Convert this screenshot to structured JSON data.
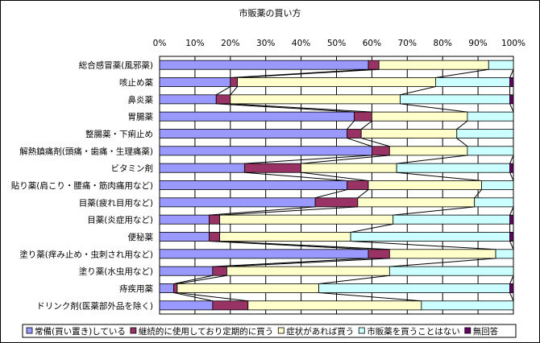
{
  "chart_data": {
    "type": "bar",
    "stacked": true,
    "orientation": "horizontal",
    "percent_stacked": true,
    "title": "市販薬の買い方",
    "categories": [
      "総合感冒薬(風邪薬)",
      "咳止め薬",
      "鼻炎薬",
      "胃腸薬",
      "整腸薬・下痢止め",
      "解熱鎮痛剤(頭痛・歯痛・生理痛薬)",
      "ビタミン剤",
      "貼り薬(肩こり・腰痛・筋肉痛用など)",
      "目薬(疲れ目用など)",
      "目薬(炎症用など)",
      "便秘薬",
      "塗り薬(痒み止め・虫刺され用など)",
      "塗り薬(水虫用など)",
      "痔疾用薬",
      "ドリンク剤(医薬部外品を除く)"
    ],
    "series": [
      {
        "name": "常備(買い置き)している",
        "color": "#9999ff",
        "values": [
          59,
          20,
          16,
          55,
          53,
          60,
          24,
          53,
          44,
          14,
          14,
          59,
          15,
          4,
          15
        ]
      },
      {
        "name": "継続的に使用しており定期的に買う",
        "color": "#993366",
        "values": [
          3,
          2,
          4,
          5,
          4,
          5,
          16,
          6,
          12,
          3,
          3,
          6,
          4,
          1,
          10
        ]
      },
      {
        "name": "症状があれば買う",
        "color": "#ffffcc",
        "values": [
          31,
          56,
          48,
          27,
          27,
          22,
          27,
          32,
          33,
          49,
          37,
          30,
          46,
          40,
          49
        ]
      },
      {
        "name": "市販薬を買うことはない",
        "color": "#ccffff",
        "values": [
          7,
          21,
          31,
          13,
          16,
          13,
          32,
          9,
          11,
          33,
          45,
          5,
          35,
          54,
          26
        ]
      },
      {
        "name": "無回答",
        "color": "#660066",
        "values": [
          0,
          1,
          1,
          0,
          0,
          0,
          1,
          0,
          0,
          1,
          1,
          0,
          0,
          1,
          0
        ]
      }
    ],
    "xlim": [
      0,
      100
    ],
    "x_ticks": [
      "0%",
      "10%",
      "20%",
      "30%",
      "40%",
      "50%",
      "60%",
      "70%",
      "80%",
      "90%",
      "100%"
    ],
    "x_axis_position": "top",
    "grid": true,
    "series_lines": true,
    "legend_position": "bottom"
  }
}
